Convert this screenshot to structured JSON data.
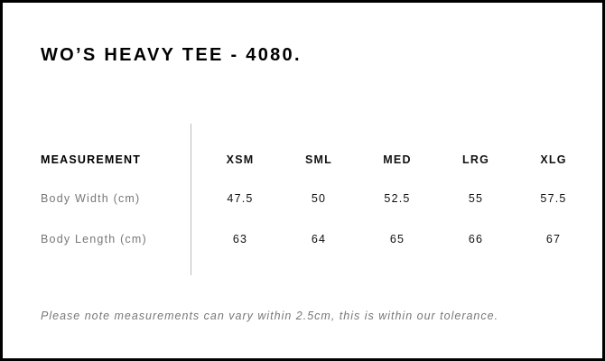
{
  "title": "WO’S HEAVY TEE - 4080.",
  "table": {
    "header_label": "MEASUREMENT",
    "sizes": [
      "XSM",
      "SML",
      "MED",
      "LRG",
      "XLG"
    ],
    "rows": [
      {
        "label": "Body Width (cm)",
        "values": [
          "47.5",
          "50",
          "52.5",
          "55",
          "57.5"
        ]
      },
      {
        "label": "Body Length (cm)",
        "values": [
          "63",
          "64",
          "65",
          "66",
          "67"
        ]
      }
    ]
  },
  "note": "Please note measurements can vary within 2.5cm, this is within our tolerance."
}
